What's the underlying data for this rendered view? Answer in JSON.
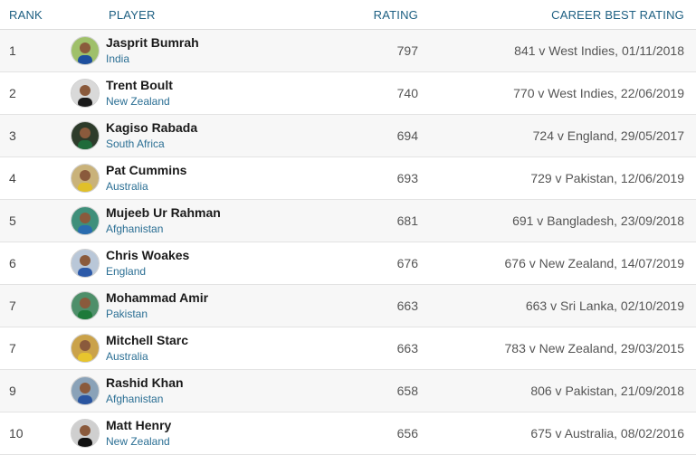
{
  "headers": {
    "rank": "RANK",
    "player": "PLAYER",
    "rating": "RATING",
    "career_best": "CAREER BEST RATING"
  },
  "rows": [
    {
      "rank": "1",
      "name": "Jasprit Bumrah",
      "country": "India",
      "rating": "797",
      "best": "841 v West Indies, 01/11/2018",
      "avatar_bg": "#9fc06a",
      "shirt": "#1e4f9e"
    },
    {
      "rank": "2",
      "name": "Trent Boult",
      "country": "New Zealand",
      "rating": "740",
      "best": "770 v West Indies, 22/06/2019",
      "avatar_bg": "#d9d9d9",
      "shirt": "#1a1a1a"
    },
    {
      "rank": "3",
      "name": "Kagiso Rabada",
      "country": "South Africa",
      "rating": "694",
      "best": "724 v England, 29/05/2017",
      "avatar_bg": "#2d3b2a",
      "shirt": "#1f6b3a"
    },
    {
      "rank": "4",
      "name": "Pat Cummins",
      "country": "Australia",
      "rating": "693",
      "best": "729 v Pakistan, 12/06/2019",
      "avatar_bg": "#c9b27a",
      "shirt": "#e0c02a"
    },
    {
      "rank": "5",
      "name": "Mujeeb Ur Rahman",
      "country": "Afghanistan",
      "rating": "681",
      "best": "691 v Bangladesh, 23/09/2018",
      "avatar_bg": "#3f8f7a",
      "shirt": "#2a6cb0"
    },
    {
      "rank": "6",
      "name": "Chris Woakes",
      "country": "England",
      "rating": "676",
      "best": "676 v New Zealand, 14/07/2019",
      "avatar_bg": "#b9c7d8",
      "shirt": "#2d5aa8"
    },
    {
      "rank": "7",
      "name": "Mohammad Amir",
      "country": "Pakistan",
      "rating": "663",
      "best": "663 v Sri Lanka, 02/10/2019",
      "avatar_bg": "#4e8f6a",
      "shirt": "#1e7a3a"
    },
    {
      "rank": "7",
      "name": "Mitchell Starc",
      "country": "Australia",
      "rating": "663",
      "best": "783 v New Zealand, 29/03/2015",
      "avatar_bg": "#caa24a",
      "shirt": "#e7c52e"
    },
    {
      "rank": "9",
      "name": "Rashid Khan",
      "country": "Afghanistan",
      "rating": "658",
      "best": "806 v Pakistan, 21/09/2018",
      "avatar_bg": "#8aa2b8",
      "shirt": "#2a55a0"
    },
    {
      "rank": "10",
      "name": "Matt Henry",
      "country": "New Zealand",
      "rating": "656",
      "best": "675 v Australia, 08/02/2016",
      "avatar_bg": "#cfcfcf",
      "shirt": "#111111"
    }
  ]
}
